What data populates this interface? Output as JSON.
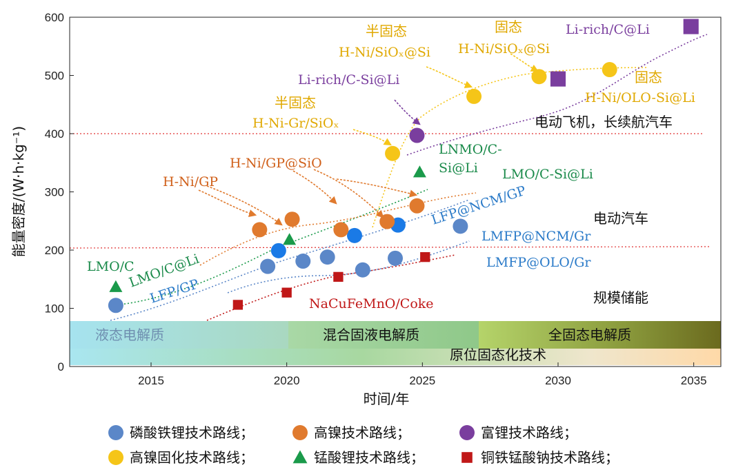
{
  "chart_data": {
    "type": "scatter",
    "xlabel": "时间/年",
    "ylabel": "能量密度/(W·h·kg⁻¹)",
    "xlim": [
      2012,
      2036
    ],
    "ylim": [
      0,
      600
    ],
    "xticks": [
      "2015",
      "2020",
      "2025",
      "2030",
      "2035"
    ],
    "yticks": [
      "0",
      "100",
      "200",
      "300",
      "400",
      "500",
      "600"
    ],
    "grid": false,
    "legend_position": "bottom",
    "reference_lines": [
      {
        "y": 400,
        "label": "电动飞机，长续航汽车",
        "color": "#e03030"
      },
      {
        "y": 205,
        "label": "电动汽车",
        "color": "#e03030"
      }
    ],
    "region_labels": [
      "规模储能"
    ],
    "bands": [
      {
        "label": "液态电解质",
        "x": [
          2012,
          2020
        ]
      },
      {
        "label": "混合固液电解质",
        "x": [
          2020,
          2027
        ]
      },
      {
        "label": "全固态电解质",
        "x": [
          2027,
          2035.8
        ]
      },
      {
        "label": "原位固态化技术",
        "x": [
          2012,
          2035.8
        ]
      }
    ],
    "series": [
      {
        "name": "磷酸铁锂技术路线",
        "marker": "circle",
        "color": "#5b87c8",
        "points": [
          {
            "x": 2013.7,
            "y": 105
          },
          {
            "x": 2019.3,
            "y": 172
          },
          {
            "x": 2020.6,
            "y": 181
          },
          {
            "x": 2021.5,
            "y": 188
          },
          {
            "x": 2022.8,
            "y": 166
          },
          {
            "x": 2024.0,
            "y": 186
          },
          {
            "x": 2026.4,
            "y": 241
          }
        ],
        "bright_points": [
          {
            "x": 2019.7,
            "y": 199
          },
          {
            "x": 2022.5,
            "y": 225
          },
          {
            "x": 2024.1,
            "y": 243
          }
        ]
      },
      {
        "name": "高镍技术路线",
        "marker": "circle",
        "color": "#e07a2e",
        "points": [
          {
            "x": 2019.0,
            "y": 235
          },
          {
            "x": 2020.2,
            "y": 253
          },
          {
            "x": 2022.0,
            "y": 235
          },
          {
            "x": 2023.7,
            "y": 249
          },
          {
            "x": 2024.8,
            "y": 276
          }
        ]
      },
      {
        "name": "富锂技术路线",
        "marker": "circle",
        "color": "#7a3e9e",
        "points": [
          {
            "x": 2024.8,
            "y": 397
          }
        ],
        "square_points": [
          {
            "x": 2030.0,
            "y": 494
          },
          {
            "x": 2034.9,
            "y": 584
          }
        ]
      },
      {
        "name": "高镍固化技术路线",
        "marker": "circle",
        "color": "#f5c518",
        "points": [
          {
            "x": 2023.9,
            "y": 366
          },
          {
            "x": 2026.9,
            "y": 464
          },
          {
            "x": 2029.3,
            "y": 498
          },
          {
            "x": 2031.9,
            "y": 510
          }
        ]
      },
      {
        "name": "锰酸锂技术路线",
        "marker": "triangle",
        "color": "#1a9a4a",
        "points": [
          {
            "x": 2013.7,
            "y": 137
          },
          {
            "x": 2020.1,
            "y": 218
          },
          {
            "x": 2024.9,
            "y": 334
          }
        ]
      },
      {
        "name": "铜铁锰酸钠技术路线",
        "marker": "square",
        "color": "#c01818",
        "points": [
          {
            "x": 2018.2,
            "y": 106
          },
          {
            "x": 2020.0,
            "y": 127
          },
          {
            "x": 2021.9,
            "y": 154
          },
          {
            "x": 2025.1,
            "y": 188
          }
        ]
      }
    ],
    "annotations": {
      "lmo_c": "LMO/C",
      "lmo_c_li": "LMO/C@Li",
      "lfp_gp": "LFP/GP",
      "h_ni_gp": "H-Ni/GP",
      "h_ni_gp_sio": "H-Ni/GP@SiO",
      "semi_solid_1": "半固态",
      "h_ni_gr_siox": "H-Ni-Gr/SiOₓ",
      "semi_solid_2": "半固态",
      "h_ni_siox_si_1": "H-Ni/SiOₓ@Si",
      "solid_1": "固态",
      "h_ni_siox_si_2": "H-Ni/SiOₓ@Si",
      "li_rich_c_li": "Li-rich/C@Li",
      "solid_2": "固态",
      "h_ni_olo_si_li": "H-Ni/OLO-Si@Li",
      "li_rich_c_si_li": "Li-rich/C-Si@Li",
      "lnmo_c": "LNMO/C-",
      "si_li": "Si@Li",
      "lmo_c_si_li": "LMO/C-Si@Li",
      "lfp_ncm_gp": "LFP@NCM/GP",
      "lmfp_ncm_gr": "LMFP@NCM/Gr",
      "lmfp_olo_gr": "LMFP@OLO/Gr",
      "nacufemno_coke": "NaCuFeMnO/Coke"
    }
  },
  "legend": [
    {
      "label": "磷酸铁锂技术路线；",
      "marker": "circle",
      "color": "#5b87c8"
    },
    {
      "label": "高镍技术路线；",
      "marker": "circle",
      "color": "#e07a2e"
    },
    {
      "label": "富锂技术路线；",
      "marker": "circle",
      "color": "#7a3e9e"
    },
    {
      "label": "高镍固化技术路线；",
      "marker": "circle",
      "color": "#f5c518"
    },
    {
      "label": "锰酸锂技术路线；",
      "marker": "triangle",
      "color": "#1a9a4a"
    },
    {
      "label": "铜铁锰酸钠技术路线；",
      "marker": "square",
      "color": "#c01818"
    }
  ]
}
